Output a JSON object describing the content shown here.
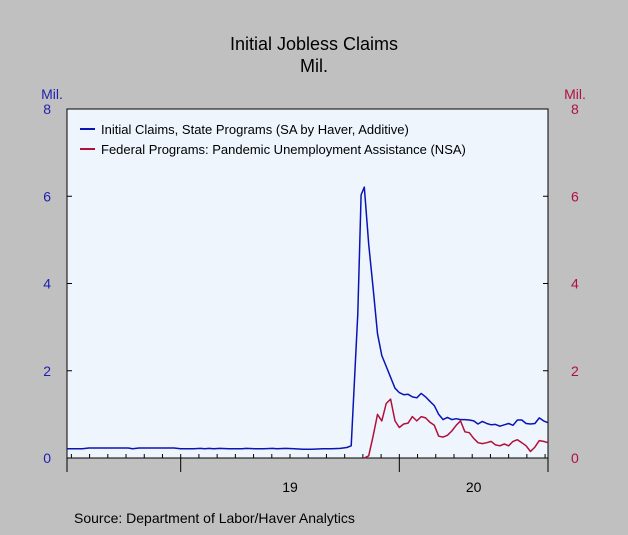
{
  "chart_data": {
    "type": "line",
    "title": "Initial Jobless Claims",
    "subtitle": "Mil.",
    "y_left_label": "Mil.",
    "y_right_label": "Mil.",
    "ylim": [
      0,
      8
    ],
    "y_ticks": [
      0,
      2,
      4,
      6,
      8
    ],
    "x_ticks": [
      {
        "label": "19",
        "at": 2019
      },
      {
        "label": "20",
        "at": 2020
      }
    ],
    "xlim": [
      2018.48,
      2020.68
    ],
    "grid": false,
    "legend_position": "top-left",
    "source": "Source: Department of Labor/Haver Analytics",
    "colors": {
      "background": "#c0c0c0",
      "plot_background": "#eef5fd",
      "left_axis": "#1f1fb0",
      "right_axis": "#b01040",
      "title": "#000000"
    },
    "series": [
      {
        "name": "Initial Claims, State Programs (SA by Haver, Additive)",
        "color": "#0a14b4",
        "axis": "left",
        "points": [
          [
            2018.48,
            0.21
          ],
          [
            2018.55,
            0.21
          ],
          [
            2018.58,
            0.23
          ],
          [
            2018.7,
            0.23
          ],
          [
            2018.76,
            0.23
          ],
          [
            2018.78,
            0.21
          ],
          [
            2018.81,
            0.23
          ],
          [
            2018.88,
            0.23
          ],
          [
            2018.94,
            0.23
          ],
          [
            2018.97,
            0.23
          ],
          [
            2019.0,
            0.21
          ],
          [
            2019.06,
            0.21
          ],
          [
            2019.09,
            0.22
          ],
          [
            2019.11,
            0.21
          ],
          [
            2019.13,
            0.22
          ],
          [
            2019.15,
            0.21
          ],
          [
            2019.18,
            0.22
          ],
          [
            2019.22,
            0.21
          ],
          [
            2019.28,
            0.21
          ],
          [
            2019.3,
            0.22
          ],
          [
            2019.34,
            0.21
          ],
          [
            2019.38,
            0.21
          ],
          [
            2019.42,
            0.22
          ],
          [
            2019.44,
            0.21
          ],
          [
            2019.48,
            0.22
          ],
          [
            2019.52,
            0.21
          ],
          [
            2019.56,
            0.2
          ],
          [
            2019.6,
            0.2
          ],
          [
            2019.65,
            0.21
          ],
          [
            2019.69,
            0.21
          ],
          [
            2019.73,
            0.22
          ],
          [
            2019.76,
            0.24
          ],
          [
            2019.78,
            0.28
          ],
          [
            2019.81,
            3.31
          ],
          [
            2019.825,
            6.03
          ],
          [
            2019.84,
            6.21
          ],
          [
            2019.86,
            4.9
          ],
          [
            2019.88,
            3.9
          ],
          [
            2019.9,
            2.85
          ],
          [
            2019.92,
            2.35
          ],
          [
            2019.94,
            2.1
          ],
          [
            2019.96,
            1.85
          ],
          [
            2019.98,
            1.6
          ],
          [
            2020.0,
            1.5
          ],
          [
            2020.02,
            1.45
          ],
          [
            2020.04,
            1.46
          ],
          [
            2020.06,
            1.4
          ],
          [
            2020.08,
            1.38
          ],
          [
            2020.1,
            1.48
          ],
          [
            2020.12,
            1.4
          ],
          [
            2020.14,
            1.3
          ],
          [
            2020.16,
            1.2
          ],
          [
            2020.18,
            1.0
          ],
          [
            2020.2,
            0.88
          ],
          [
            2020.22,
            0.93
          ],
          [
            2020.24,
            0.88
          ],
          [
            2020.26,
            0.9
          ],
          [
            2020.28,
            0.88
          ],
          [
            2020.3,
            0.88
          ],
          [
            2020.32,
            0.87
          ],
          [
            2020.34,
            0.85
          ],
          [
            2020.36,
            0.78
          ],
          [
            2020.38,
            0.84
          ],
          [
            2020.4,
            0.79
          ],
          [
            2020.42,
            0.76
          ],
          [
            2020.44,
            0.77
          ],
          [
            2020.46,
            0.73
          ],
          [
            2020.48,
            0.76
          ],
          [
            2020.5,
            0.79
          ],
          [
            2020.52,
            0.75
          ],
          [
            2020.54,
            0.87
          ],
          [
            2020.56,
            0.87
          ],
          [
            2020.58,
            0.79
          ],
          [
            2020.6,
            0.78
          ],
          [
            2020.62,
            0.79
          ],
          [
            2020.64,
            0.92
          ],
          [
            2020.66,
            0.85
          ],
          [
            2020.68,
            0.81
          ]
        ]
      },
      {
        "name": "Federal Programs: Pandemic Unemployment Assistance (NSA)",
        "color": "#b0103a",
        "axis": "right",
        "points": [
          [
            2019.84,
            0.0
          ],
          [
            2019.86,
            0.05
          ],
          [
            2019.88,
            0.5
          ],
          [
            2019.9,
            1.0
          ],
          [
            2019.92,
            0.85
          ],
          [
            2019.94,
            1.25
          ],
          [
            2019.96,
            1.35
          ],
          [
            2019.98,
            0.85
          ],
          [
            2020.0,
            0.7
          ],
          [
            2020.02,
            0.78
          ],
          [
            2020.04,
            0.8
          ],
          [
            2020.06,
            0.95
          ],
          [
            2020.08,
            0.85
          ],
          [
            2020.1,
            0.95
          ],
          [
            2020.12,
            0.92
          ],
          [
            2020.14,
            0.82
          ],
          [
            2020.16,
            0.75
          ],
          [
            2020.18,
            0.5
          ],
          [
            2020.2,
            0.48
          ],
          [
            2020.22,
            0.52
          ],
          [
            2020.24,
            0.62
          ],
          [
            2020.26,
            0.75
          ],
          [
            2020.28,
            0.85
          ],
          [
            2020.3,
            0.6
          ],
          [
            2020.32,
            0.58
          ],
          [
            2020.34,
            0.45
          ],
          [
            2020.36,
            0.35
          ],
          [
            2020.38,
            0.33
          ],
          [
            2020.4,
            0.35
          ],
          [
            2020.42,
            0.38
          ],
          [
            2020.44,
            0.3
          ],
          [
            2020.46,
            0.28
          ],
          [
            2020.48,
            0.32
          ],
          [
            2020.5,
            0.28
          ],
          [
            2020.52,
            0.38
          ],
          [
            2020.54,
            0.42
          ],
          [
            2020.56,
            0.35
          ],
          [
            2020.58,
            0.28
          ],
          [
            2020.6,
            0.15
          ],
          [
            2020.62,
            0.25
          ],
          [
            2020.64,
            0.4
          ],
          [
            2020.66,
            0.38
          ],
          [
            2020.68,
            0.35
          ]
        ]
      }
    ]
  }
}
